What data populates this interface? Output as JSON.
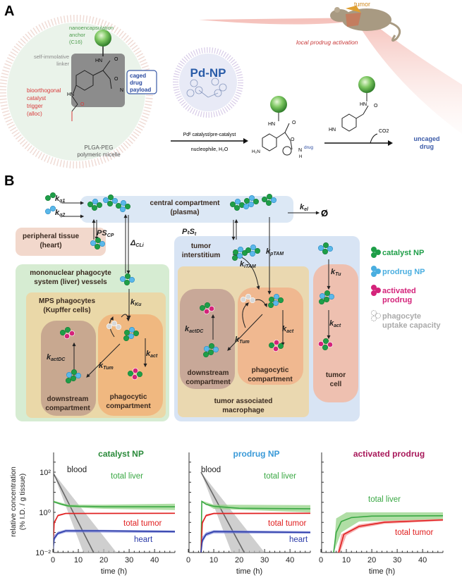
{
  "panel_a": {
    "label": "A",
    "anchor": [
      "nanoencapsulation",
      "anchor",
      "(C16)"
    ],
    "linker": [
      "self-immolative",
      "linker"
    ],
    "trigger": [
      "bioorthogonal",
      "catalyst",
      "trigger",
      "(alloc)"
    ],
    "payload": [
      "caged",
      "drug",
      "payload"
    ],
    "micelle": [
      "PLGA-PEG",
      "polymeric micelle"
    ],
    "pdnp": "Pd-NP",
    "arrow1_top": "Pdᴵᴵ catalyst/pre-catalyst",
    "arrow1_bottom": "nucleophile, H₂O",
    "drug_label": "drug",
    "co2": "CO2",
    "uncaged": [
      "uncaged",
      "drug"
    ],
    "tumor": "tumor",
    "local_activation": "local prodrug activation",
    "atoms": {
      "hn": "HN",
      "o": "O",
      "n": "N",
      "h": "H",
      "h2n": "H₂N"
    }
  },
  "panel_b": {
    "label": "B",
    "central": [
      "central compartment",
      "(plasma)"
    ],
    "peripheral": [
      "peripheral tissue",
      "(heart)"
    ],
    "mps": [
      "mononuclear phagocyte",
      "system (liver) vessels"
    ],
    "mps_phagocytes": [
      "MPS phagocytes",
      "(Kupffer cells)"
    ],
    "downstream": [
      "downstream",
      "compartment"
    ],
    "phagocytic": [
      "phagocytic",
      "compartment"
    ],
    "tumor_interstitium": [
      "tumor",
      "interstitium"
    ],
    "tam": [
      "tumor associated",
      "macrophage"
    ],
    "tumor_cell": [
      "tumor",
      "cell"
    ],
    "empty_set": "Ø",
    "rates": {
      "kq1": {
        "main": "k",
        "sub": "q1"
      },
      "kq2": {
        "main": "k",
        "sub": "q2"
      },
      "kel": {
        "main": "k",
        "sub": "el"
      },
      "pscp": {
        "main": "PS",
        "sub": "CP"
      },
      "dcli": {
        "main": "Δ",
        "sub": "CLi"
      },
      "ptst": {
        "main": "PₜS",
        "sub": "t"
      },
      "kptam": {
        "main": "k",
        "sub": "pTAM"
      },
      "kitam": {
        "main": "k",
        "sub": "iTAM"
      },
      "kku": {
        "main": "k",
        "sub": "Ku"
      },
      "kact": {
        "main": "k",
        "sub": "act"
      },
      "kactdc": {
        "main": "k",
        "sub": "actDC"
      },
      "ktum": {
        "main": "k",
        "sub": "Tum"
      },
      "ktu": {
        "main": "k",
        "sub": "Tu"
      }
    },
    "legend": [
      {
        "label": [
          "catalyst NP"
        ],
        "color": "#1e9e48",
        "icon": "catalyst-np-dots"
      },
      {
        "label": [
          "prodrug NP"
        ],
        "color": "#4aaee0",
        "icon": "prodrug-np-dots"
      },
      {
        "label": [
          "activated",
          "prodrug"
        ],
        "color": "#d4237a",
        "icon": "activated-prodrug-dots"
      },
      {
        "label": [
          "phagocyte",
          "uptake capacity"
        ],
        "color": "#aaaaaa",
        "icon": "uptake-capacity-dots"
      }
    ]
  },
  "chart_data": [
    {
      "type": "line",
      "title": "catalyst NP",
      "title_color": "#2a8a3a",
      "xlabel": "time (h)",
      "ylabel": [
        "relative concentration",
        "(% I.D. / g tissue)"
      ],
      "xlim": [
        0,
        48
      ],
      "ylim": [
        0.01,
        300
      ],
      "yscale": "log",
      "xticks": [
        0,
        10,
        20,
        30,
        40
      ],
      "yticks": [
        {
          "v": 100,
          "label": "10²"
        },
        {
          "v": 1,
          "label": "10⁰"
        },
        {
          "v": 0.01,
          "label": "10⁻²"
        }
      ],
      "series": [
        {
          "name": "blood",
          "color": "#666666",
          "band_color": "#bbbbbb",
          "points": [
            [
              0,
              100
            ],
            [
              16,
              0.01
            ]
          ],
          "band_low": [
            [
              0,
              100
            ],
            [
              12,
              0.01
            ]
          ],
          "band_high": [
            [
              0,
              100
            ],
            [
              25,
              0.01
            ]
          ]
        },
        {
          "name": "total liver",
          "color": "#3aa844",
          "band_color": "#8fd07f",
          "points": [
            [
              0,
              3.5
            ],
            [
              3,
              2.6
            ],
            [
              6,
              2.1
            ],
            [
              10,
              2.0
            ],
            [
              20,
              1.9
            ],
            [
              48,
              1.9
            ]
          ],
          "band_low": [
            [
              0,
              3.1
            ],
            [
              6,
              1.8
            ],
            [
              20,
              1.5
            ],
            [
              48,
              1.3
            ]
          ],
          "band_high": [
            [
              0,
              3.9
            ],
            [
              6,
              2.4
            ],
            [
              20,
              2.4
            ],
            [
              48,
              2.7
            ]
          ]
        },
        {
          "name": "total tumor",
          "color": "#e02020",
          "band_color": "#f39090",
          "points": [
            [
              0,
              0.01
            ],
            [
              0.5,
              0.3
            ],
            [
              2,
              0.7
            ],
            [
              5,
              0.88
            ],
            [
              48,
              0.9
            ]
          ],
          "band_low": [
            [
              0,
              0.01
            ],
            [
              0.6,
              0.25
            ],
            [
              2,
              0.62
            ],
            [
              5,
              0.82
            ],
            [
              48,
              0.84
            ]
          ],
          "band_high": [
            [
              0,
              0.01
            ],
            [
              0.4,
              0.35
            ],
            [
              2,
              0.78
            ],
            [
              5,
              0.95
            ],
            [
              48,
              0.96
            ]
          ]
        },
        {
          "name": "heart",
          "color": "#2a3aa8",
          "band_color": "#7d88d8",
          "points": [
            [
              0,
              0.01
            ],
            [
              0.5,
              0.05
            ],
            [
              2,
              0.09
            ],
            [
              5,
              0.12
            ],
            [
              20,
              0.12
            ],
            [
              48,
              0.11
            ]
          ],
          "band_low": [
            [
              0,
              0.01
            ],
            [
              0.6,
              0.04
            ],
            [
              2,
              0.075
            ],
            [
              5,
              0.1
            ],
            [
              48,
              0.095
            ]
          ],
          "band_high": [
            [
              0,
              0.01
            ],
            [
              0.4,
              0.07
            ],
            [
              2,
              0.11
            ],
            [
              5,
              0.14
            ],
            [
              48,
              0.125
            ]
          ]
        }
      ],
      "labels": [
        {
          "text": "blood",
          "color": "#222222"
        },
        {
          "text": "total liver",
          "color": "#3aa844"
        },
        {
          "text": "total tumor",
          "color": "#e02020"
        },
        {
          "text": "heart",
          "color": "#2a3aa8"
        }
      ]
    },
    {
      "type": "line",
      "title": "prodrug NP",
      "title_color": "#3a9ad8",
      "xlabel": "time (h)",
      "xlim": [
        0,
        48
      ],
      "ylim": [
        0.01,
        300
      ],
      "yscale": "log",
      "xticks": [
        0,
        10,
        20,
        30,
        40
      ],
      "series": [
        {
          "name": "blood",
          "color": "#666666",
          "band_color": "#bbbbbb",
          "points": [
            [
              5,
              100
            ],
            [
              22,
              0.01
            ]
          ],
          "band_low": [
            [
              5,
              100
            ],
            [
              17,
              0.01
            ]
          ],
          "band_high": [
            [
              5,
              100
            ],
            [
              30,
              0.01
            ]
          ]
        },
        {
          "name": "total liver",
          "color": "#3aa844",
          "band_color": "#8fd07f",
          "points": [
            [
              5,
              0.01
            ],
            [
              5.3,
              3.5
            ],
            [
              7,
              2.5
            ],
            [
              10,
              2.0
            ],
            [
              20,
              1.6
            ],
            [
              48,
              1.5
            ]
          ],
          "band_low": [
            [
              5,
              0.01
            ],
            [
              5.3,
              3.2
            ],
            [
              10,
              1.5
            ],
            [
              48,
              1.0
            ]
          ],
          "band_high": [
            [
              5,
              0.01
            ],
            [
              5.3,
              3.8
            ],
            [
              10,
              2.4
            ],
            [
              48,
              2.3
            ]
          ]
        },
        {
          "name": "total tumor",
          "color": "#e02020",
          "band_color": "#f39090",
          "points": [
            [
              5,
              0.01
            ],
            [
              5.5,
              0.3
            ],
            [
              7,
              0.7
            ],
            [
              10,
              0.88
            ],
            [
              48,
              0.9
            ]
          ],
          "band_low": [
            [
              5,
              0.01
            ],
            [
              5.6,
              0.25
            ],
            [
              7,
              0.6
            ],
            [
              10,
              0.8
            ],
            [
              48,
              0.83
            ]
          ],
          "band_high": [
            [
              5,
              0.01
            ],
            [
              5.4,
              0.35
            ],
            [
              7,
              0.8
            ],
            [
              10,
              0.95
            ],
            [
              48,
              0.97
            ]
          ]
        },
        {
          "name": "heart",
          "color": "#2a3aa8",
          "band_color": "#7d88d8",
          "points": [
            [
              5,
              0.01
            ],
            [
              5.5,
              0.04
            ],
            [
              7,
              0.08
            ],
            [
              10,
              0.11
            ],
            [
              48,
              0.1
            ]
          ],
          "band_low": [
            [
              5,
              0.01
            ],
            [
              5.6,
              0.03
            ],
            [
              7,
              0.065
            ],
            [
              10,
              0.09
            ],
            [
              48,
              0.088
            ]
          ],
          "band_high": [
            [
              5,
              0.01
            ],
            [
              5.4,
              0.06
            ],
            [
              7,
              0.1
            ],
            [
              10,
              0.13
            ],
            [
              48,
              0.115
            ]
          ]
        }
      ],
      "labels": [
        {
          "text": "blood",
          "color": "#222222"
        },
        {
          "text": "total liver",
          "color": "#3aa844"
        },
        {
          "text": "total tumor",
          "color": "#e02020"
        },
        {
          "text": "heart",
          "color": "#2a3aa8"
        }
      ]
    },
    {
      "type": "line",
      "title": "activated prodrug",
      "title_color": "#a8185a",
      "xlabel": "time (h)",
      "xlim": [
        0,
        48
      ],
      "ylim": [
        0.01,
        300
      ],
      "yscale": "log",
      "xticks": [
        0,
        10,
        20,
        30,
        40
      ],
      "series": [
        {
          "name": "total liver",
          "color": "#3aa844",
          "band_color": "#8fd07f",
          "points": [
            [
              5,
              0.01
            ],
            [
              6,
              0.1
            ],
            [
              8,
              0.35
            ],
            [
              12,
              0.55
            ],
            [
              20,
              0.65
            ],
            [
              48,
              0.68
            ]
          ],
          "band_low": [
            [
              5,
              0.01
            ],
            [
              8,
              0.1
            ],
            [
              15,
              0.35
            ],
            [
              48,
              0.45
            ]
          ],
          "band_high": [
            [
              5,
              0.01
            ],
            [
              6,
              0.5
            ],
            [
              10,
              1.0
            ],
            [
              48,
              1.0
            ]
          ]
        },
        {
          "name": "total tumor",
          "color": "#e02020",
          "band_color": "#f39090",
          "points": [
            [
              7,
              0.01
            ],
            [
              9,
              0.08
            ],
            [
              15,
              0.2
            ],
            [
              25,
              0.32
            ],
            [
              48,
              0.42
            ]
          ],
          "band_low": [
            [
              7.5,
              0.01
            ],
            [
              10,
              0.07
            ],
            [
              15,
              0.16
            ],
            [
              25,
              0.27
            ],
            [
              48,
              0.37
            ]
          ],
          "band_high": [
            [
              6.5,
              0.01
            ],
            [
              8,
              0.08
            ],
            [
              15,
              0.25
            ],
            [
              25,
              0.38
            ],
            [
              48,
              0.48
            ]
          ]
        }
      ],
      "labels": [
        {
          "text": "total liver",
          "color": "#3aa844"
        },
        {
          "text": "total tumor",
          "color": "#e02020"
        }
      ]
    }
  ],
  "colors": {
    "catalyst": "#1e9e48",
    "prodrug": "#4aaee0",
    "activated": "#d4237a",
    "plasma_bg": "#dce8f5",
    "mps_bg": "#d6ecd2",
    "tumor_bg": "#d8e4f4"
  }
}
